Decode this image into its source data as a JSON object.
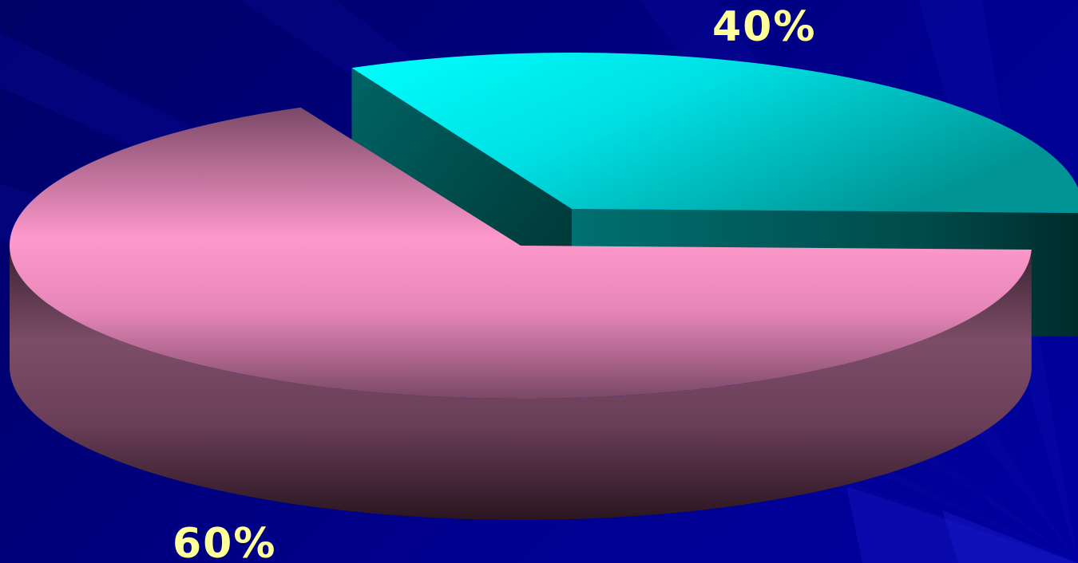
{
  "chart_data": {
    "type": "pie",
    "three_d": true,
    "exploded": true,
    "slices": [
      {
        "label": "40%",
        "value": 40,
        "top_color": "#00e5e8",
        "side_color": "#006a6a"
      },
      {
        "label": "60%",
        "value": 60,
        "top_color": "#ff99cc",
        "side_color": "#7a4a66"
      }
    ],
    "label_color": "#ffff99",
    "background_color": "#00008b"
  }
}
